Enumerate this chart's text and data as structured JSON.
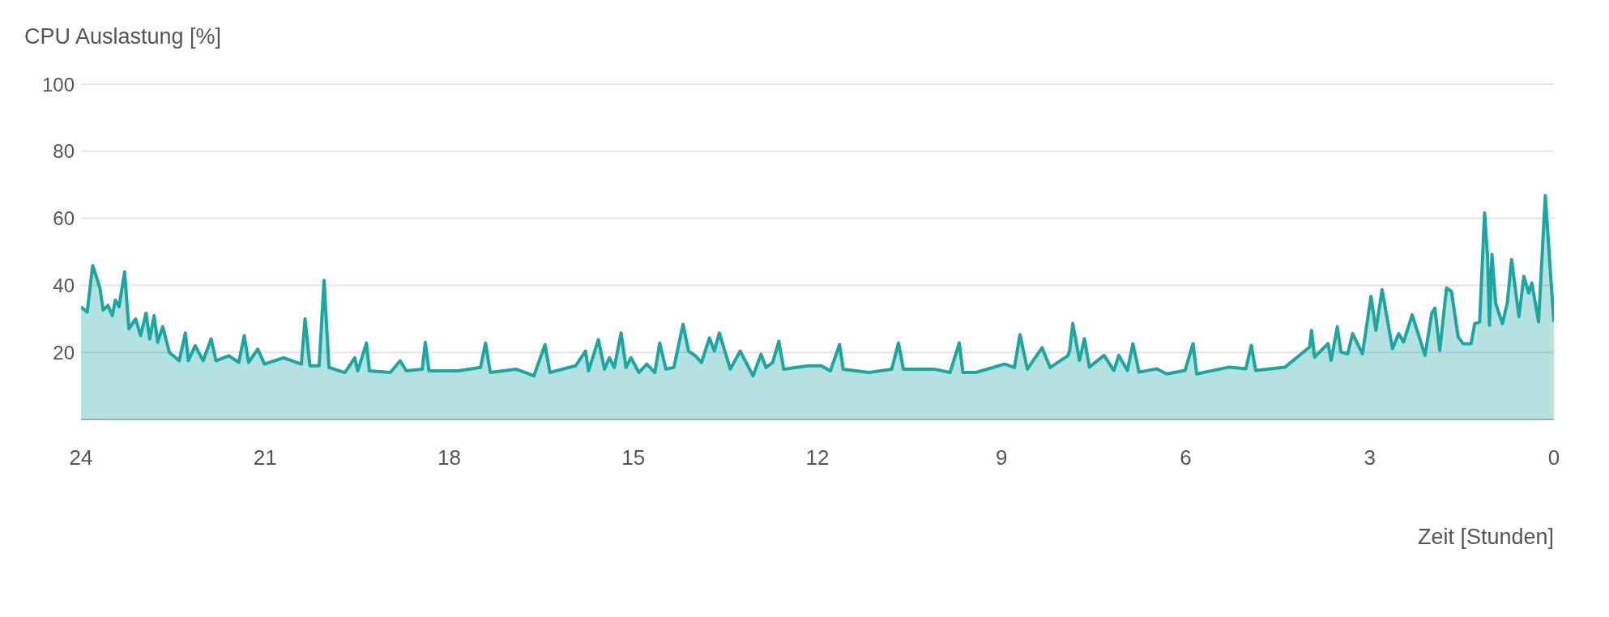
{
  "chart_data": {
    "type": "area",
    "ylabel": "CPU Auslastung [%]",
    "xlabel": "Zeit [Stunden]",
    "x": [
      24,
      23.9,
      23.81,
      23.74,
      23.69,
      23.64,
      23.56,
      23.49,
      23.44,
      23.38,
      23.29,
      23.22,
      23.11,
      23.03,
      22.94,
      22.88,
      22.81,
      22.75,
      22.67,
      22.56,
      22.4,
      22.3,
      22.25,
      22.14,
      22.01,
      21.88,
      21.8,
      21.59,
      21.43,
      21.34,
      21.27,
      21.12,
      21.01,
      20.7,
      20.41,
      20.35,
      20.27,
      20.12,
      20.04,
      19.96,
      19.7,
      19.54,
      19.49,
      19.35,
      19.3,
      18.96,
      18.8,
      18.7,
      18.44,
      18.39,
      18.33,
      17.86,
      17.49,
      17.41,
      17.33,
      16.91,
      16.62,
      16.44,
      16.36,
      15.94,
      15.78,
      15.73,
      15.57,
      15.47,
      15.39,
      15.31,
      15.2,
      15.12,
      15.04,
      14.91,
      14.78,
      14.65,
      14.57,
      14.47,
      14.34,
      14.19,
      14.1,
      13.99,
      13.89,
      13.76,
      13.68,
      13.6,
      13.42,
      13.26,
      13.05,
      12.92,
      12.84,
      12.73,
      12.63,
      12.55,
      12.15,
      11.94,
      11.79,
      11.64,
      11.58,
      11.16,
      10.79,
      10.68,
      10.6,
      10.1,
      9.84,
      9.69,
      9.63,
      9.42,
      8.95,
      8.79,
      8.7,
      8.58,
      8.34,
      8.21,
      7.92,
      7.89,
      7.84,
      7.73,
      7.65,
      7.57,
      7.33,
      7.17,
      7.09,
      6.95,
      6.86,
      6.76,
      6.47,
      6.31,
      6.01,
      5.88,
      5.82,
      5.29,
      5.02,
      4.93,
      4.86,
      4.38,
      3.98,
      3.95,
      3.9,
      3.68,
      3.63,
      3.53,
      3.47,
      3.36,
      3.28,
      3.12,
      2.98,
      2.9,
      2.8,
      2.63,
      2.53,
      2.45,
      2.31,
      2.1,
      1.99,
      1.94,
      1.86,
      1.75,
      1.67,
      1.56,
      1.48,
      1.35,
      1.29,
      1.21,
      1.13,
      1.08,
      1.05,
      1.01,
      0.95,
      0.84,
      0.76,
      0.69,
      0.57,
      0.49,
      0.41,
      0.36,
      0.25,
      0.14,
      0.06,
      0
    ],
    "series": [
      {
        "color": "#1aa6a1",
        "values": [
          33.6,
          32,
          45.9,
          42,
          39,
          32.6,
          34,
          31,
          35.6,
          33.6,
          44,
          27,
          30,
          25,
          31.7,
          24,
          31,
          23,
          27.7,
          20,
          17.5,
          25.8,
          17.5,
          22,
          17.5,
          24,
          17.5,
          19,
          17,
          25,
          17,
          21,
          16.5,
          18.4,
          16.5,
          30,
          16,
          16,
          41.5,
          15.5,
          14,
          18.4,
          14.5,
          22.8,
          14.5,
          14,
          17.5,
          14.5,
          15,
          23,
          14.5,
          14.5,
          15.5,
          22.8,
          14,
          15,
          13,
          22.3,
          14,
          16,
          20.4,
          14.5,
          23.8,
          15,
          18.4,
          15.5,
          25.8,
          15.5,
          18.4,
          14,
          16.5,
          14,
          22.8,
          15,
          15.5,
          28.4,
          20.4,
          19,
          17,
          24.3,
          20.4,
          25.8,
          15,
          20.4,
          13,
          19.4,
          15.5,
          17,
          23.3,
          15,
          16,
          16,
          14.5,
          22.3,
          15,
          14,
          15,
          22.8,
          15,
          15,
          14,
          22.8,
          14,
          14,
          16.5,
          15.5,
          25.3,
          15,
          21.4,
          15.5,
          19,
          20.6,
          28.6,
          17.6,
          24.1,
          15.6,
          19.1,
          14.6,
          19.1,
          14.6,
          22.6,
          14.1,
          15.1,
          13.6,
          14.6,
          22.6,
          13.6,
          15.6,
          15.1,
          22.1,
          14.6,
          15.6,
          21.6,
          26.6,
          18.6,
          22.6,
          17.6,
          27.6,
          20.1,
          19.6,
          25.6,
          19.6,
          36.7,
          26.6,
          38.7,
          21.1,
          25.6,
          23.1,
          31.2,
          19.1,
          31.7,
          33.2,
          20.6,
          39.2,
          38.2,
          24.6,
          22.6,
          22.6,
          28.6,
          29.1,
          61.6,
          48.2,
          28.1,
          49.2,
          34.7,
          28.6,
          34.7,
          47.7,
          30.7,
          42.7,
          37.7,
          40.7,
          29.1,
          66.8,
          44.7,
          29.1
        ]
      }
    ],
    "xlim": [
      24,
      0
    ],
    "xticks": [
      24,
      21,
      18,
      15,
      12,
      9,
      6,
      3,
      0
    ],
    "ylim": [
      0,
      100
    ],
    "yticks": [
      {
        "value": 0,
        "label": null
      },
      20,
      40,
      60,
      80,
      100
    ],
    "grid": "y"
  }
}
